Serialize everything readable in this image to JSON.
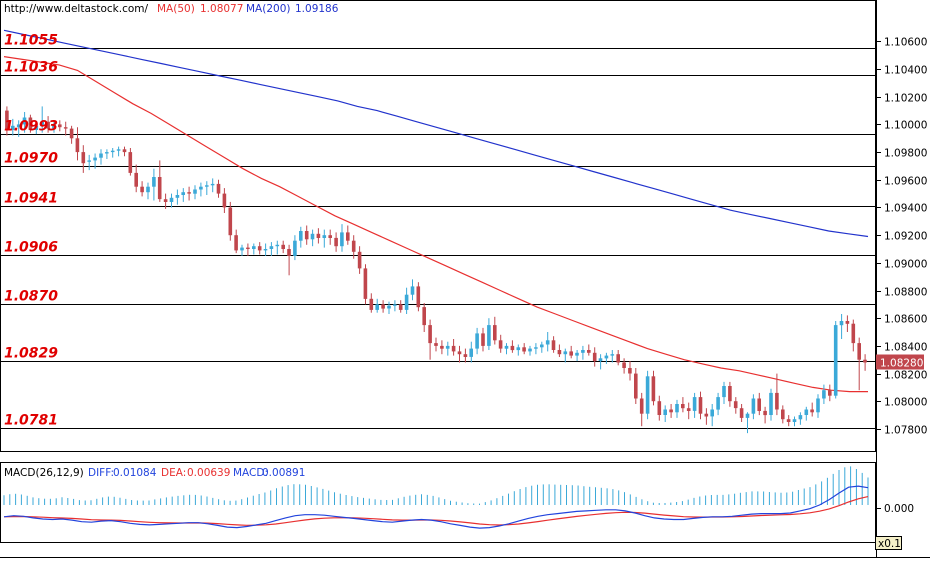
{
  "chart_data": [
    {
      "type": "candlestick",
      "header": {
        "url": "http://www.deltastock.com/",
        "ma50_label": "MA(50)",
        "ma50_value": "1.08077",
        "ma200_label": "MA(200)",
        "ma200_value": "1.09186"
      },
      "ylim": [
        1.0772,
        1.1074
      ],
      "y_ticks": [
        "1.10600",
        "1.10400",
        "1.10200",
        "1.10000",
        "1.09800",
        "1.09600",
        "1.09400",
        "1.09200",
        "1.09000",
        "1.08800",
        "1.08600",
        "1.08400",
        "1.08200",
        "1.08000",
        "1.07800"
      ],
      "last_price": "1.08280",
      "level_lines": [
        "1.1055",
        "1.1036",
        "1.0993",
        "1.0970",
        "1.0941",
        "1.0906",
        "1.0870",
        "1.0829",
        "1.0781"
      ],
      "colors": {
        "up": "#3ba9d8",
        "down": "#c0464c",
        "ma50": "#e83030",
        "ma200": "#2233cc",
        "level_text": "#e00000"
      },
      "ma50": [
        1.1049,
        1.1047,
        1.1045,
        1.1043,
        1.1039,
        1.1031,
        1.1023,
        1.1015,
        1.1008,
        1.1,
        1.0992,
        1.0984,
        1.0976,
        1.0968,
        1.0961,
        1.0955,
        1.0948,
        1.0941,
        1.0934,
        1.0928,
        1.0922,
        1.0916,
        1.091,
        1.0904,
        1.0898,
        1.0892,
        1.0886,
        1.088,
        1.0874,
        1.0868,
        1.0863,
        1.0858,
        1.0853,
        1.0848,
        1.0843,
        1.0838,
        1.0834,
        1.083,
        1.0827,
        1.0824,
        1.0822,
        1.0819,
        1.0816,
        1.0813,
        1.081,
        1.0808,
        1.0807,
        1.0807
      ],
      "ma200": [
        1.1068,
        1.1065,
        1.1062,
        1.1059,
        1.1056,
        1.1053,
        1.105,
        1.1047,
        1.1044,
        1.1041,
        1.1038,
        1.1035,
        1.1032,
        1.1029,
        1.1026,
        1.1023,
        1.102,
        1.1017,
        1.1013,
        1.101,
        1.1006,
        1.1002,
        1.0998,
        1.0994,
        1.099,
        1.0986,
        1.0982,
        1.0978,
        1.0974,
        1.097,
        1.0966,
        1.0962,
        1.0958,
        1.0954,
        1.095,
        1.0946,
        1.0942,
        1.0938,
        1.0935,
        1.0932,
        1.0929,
        1.0926,
        1.0923,
        1.0921,
        1.0919
      ],
      "candles": [
        [
          1.101,
          1.1013,
          1.0992,
          1.0996
        ],
        [
          1.0996,
          1.1004,
          1.0992,
          1.0999
        ],
        [
          1.0998,
          1.1003,
          1.0991,
          1.1
        ],
        [
          1.1,
          1.1009,
          1.0994,
          1.1005
        ],
        [
          1.1005,
          1.1007,
          1.0994,
          1.0996
        ],
        [
          1.0996,
          1.1002,
          1.0993,
          1.0999
        ],
        [
          1.0999,
          1.1013,
          1.0994,
          1.1002
        ],
        [
          1.1002,
          1.1006,
          1.0994,
          1.0997
        ],
        [
          1.0997,
          1.1002,
          1.0994,
          1.1
        ],
        [
          1.1,
          1.1003,
          1.0995,
          1.0998
        ],
        [
          1.0998,
          1.1002,
          1.0992,
          1.0997
        ],
        [
          1.0997,
          1.0999,
          1.0986,
          1.099
        ],
        [
          1.099,
          1.0998,
          1.0974,
          1.098
        ],
        [
          1.098,
          1.0985,
          1.0965,
          1.0972
        ],
        [
          1.0973,
          1.0978,
          1.0967,
          1.0974
        ],
        [
          1.0974,
          1.0979,
          1.0968,
          1.0976
        ],
        [
          1.0976,
          1.0982,
          1.0971,
          1.0979
        ],
        [
          1.0979,
          1.0982,
          1.0975,
          1.098
        ],
        [
          1.098,
          1.0983,
          1.0976,
          1.0981
        ],
        [
          1.0981,
          1.0984,
          1.0977,
          1.0982
        ],
        [
          1.0982,
          1.0984,
          1.0977,
          1.098
        ],
        [
          1.098,
          1.0983,
          1.0963,
          1.0965
        ],
        [
          1.0965,
          1.0971,
          1.0951,
          1.0955
        ],
        [
          1.0955,
          1.0959,
          1.0948,
          1.0951
        ],
        [
          1.0951,
          1.0958,
          1.0946,
          1.0955
        ],
        [
          1.0955,
          1.0968,
          1.0945,
          1.0962
        ],
        [
          1.0962,
          1.0974,
          1.0944,
          1.0946
        ],
        [
          1.0946,
          1.095,
          1.0939,
          1.0944
        ],
        [
          1.0944,
          1.095,
          1.094,
          1.0947
        ],
        [
          1.0947,
          1.0953,
          1.0942,
          1.0949
        ],
        [
          1.0949,
          1.0954,
          1.0944,
          1.0951
        ],
        [
          1.0951,
          1.0955,
          1.0945,
          1.095
        ],
        [
          1.095,
          1.0956,
          1.0946,
          1.0953
        ],
        [
          1.0953,
          1.0958,
          1.0948,
          1.0955
        ],
        [
          1.0955,
          1.0959,
          1.0949,
          1.0956
        ],
        [
          1.0956,
          1.0961,
          1.0951,
          1.0957
        ],
        [
          1.0957,
          1.096,
          1.0947,
          1.095
        ],
        [
          1.095,
          1.0954,
          1.0936,
          1.094
        ],
        [
          1.094,
          1.0944,
          1.0916,
          1.092
        ],
        [
          1.092,
          1.0924,
          1.0907,
          1.0909
        ],
        [
          1.0909,
          1.0913,
          1.0905,
          1.0911
        ],
        [
          1.0911,
          1.0914,
          1.0905,
          1.091
        ],
        [
          1.091,
          1.0914,
          1.0906,
          1.0912
        ],
        [
          1.0912,
          1.0915,
          1.0906,
          1.0909
        ],
        [
          1.0909,
          1.0914,
          1.0905,
          1.091
        ],
        [
          1.091,
          1.0915,
          1.0905,
          1.0912
        ],
        [
          1.0912,
          1.0916,
          1.0906,
          1.0913
        ],
        [
          1.0913,
          1.0916,
          1.0907,
          1.091
        ],
        [
          1.091,
          1.0913,
          1.0891,
          1.0905
        ],
        [
          1.0905,
          1.092,
          1.0902,
          1.0916
        ],
        [
          1.0916,
          1.0926,
          1.0911,
          1.0923
        ],
        [
          1.0923,
          1.0927,
          1.0913,
          1.0917
        ],
        [
          1.0917,
          1.0924,
          1.0912,
          1.0921
        ],
        [
          1.0921,
          1.0925,
          1.0914,
          1.0918
        ],
        [
          1.0918,
          1.0924,
          1.0911,
          1.092
        ],
        [
          1.092,
          1.0924,
          1.0913,
          1.0918
        ],
        [
          1.0918,
          1.0922,
          1.0908,
          1.0912
        ],
        [
          1.0912,
          1.0928,
          1.0908,
          1.0922
        ],
        [
          1.0922,
          1.0927,
          1.0913,
          1.0916
        ],
        [
          1.0916,
          1.092,
          1.0903,
          1.0908
        ],
        [
          1.0908,
          1.0912,
          1.0892,
          1.0896
        ],
        [
          1.0896,
          1.0899,
          1.087,
          1.0874
        ],
        [
          1.0874,
          1.0878,
          1.0864,
          1.0866
        ],
        [
          1.0866,
          1.0874,
          1.0864,
          1.087
        ],
        [
          1.087,
          1.0873,
          1.0864,
          1.0867
        ],
        [
          1.0867,
          1.0872,
          1.0863,
          1.0869
        ],
        [
          1.0869,
          1.0873,
          1.0865,
          1.087
        ],
        [
          1.087,
          1.0873,
          1.0864,
          1.0866
        ],
        [
          1.0866,
          1.0882,
          1.0863,
          1.0877
        ],
        [
          1.0877,
          1.0888,
          1.0873,
          1.0883
        ],
        [
          1.0883,
          1.0886,
          1.0865,
          1.0868
        ],
        [
          1.0868,
          1.0871,
          1.085,
          1.0855
        ],
        [
          1.0855,
          1.0859,
          1.083,
          1.0842
        ],
        [
          1.0842,
          1.0846,
          1.0836,
          1.084
        ],
        [
          1.084,
          1.0844,
          1.0834,
          1.0838
        ],
        [
          1.0838,
          1.0843,
          1.0833,
          1.084
        ],
        [
          1.084,
          1.0845,
          1.0833,
          1.0836
        ],
        [
          1.0836,
          1.084,
          1.0828,
          1.0834
        ],
        [
          1.0834,
          1.0838,
          1.0828,
          1.0832
        ],
        [
          1.0832,
          1.0843,
          1.0828,
          1.0838
        ],
        [
          1.0838,
          1.0853,
          1.0834,
          1.0849
        ],
        [
          1.0849,
          1.0853,
          1.0836,
          1.084
        ],
        [
          1.084,
          1.086,
          1.0837,
          1.0855
        ],
        [
          1.0855,
          1.0861,
          1.0841,
          1.0844
        ],
        [
          1.0844,
          1.0848,
          1.0835,
          1.0838
        ],
        [
          1.0838,
          1.0842,
          1.0834,
          1.084
        ],
        [
          1.084,
          1.0844,
          1.0835,
          1.0837
        ],
        [
          1.0837,
          1.0841,
          1.0833,
          1.0839
        ],
        [
          1.0839,
          1.0842,
          1.0834,
          1.0836
        ],
        [
          1.0836,
          1.084,
          1.0833,
          1.0838
        ],
        [
          1.0838,
          1.0842,
          1.0834,
          1.0839
        ],
        [
          1.0839,
          1.0843,
          1.0835,
          1.0841
        ],
        [
          1.0841,
          1.085,
          1.0836,
          1.0844
        ],
        [
          1.0844,
          1.0847,
          1.0835,
          1.0837
        ],
        [
          1.0837,
          1.0841,
          1.0832,
          1.0834
        ],
        [
          1.0834,
          1.0838,
          1.0828,
          1.0836
        ],
        [
          1.0836,
          1.084,
          1.0831,
          1.0833
        ],
        [
          1.0833,
          1.0837,
          1.0829,
          1.0835
        ],
        [
          1.0835,
          1.084,
          1.083,
          1.0837
        ],
        [
          1.0837,
          1.0841,
          1.0833,
          1.0835
        ],
        [
          1.0835,
          1.0839,
          1.0825,
          1.0829
        ],
        [
          1.0829,
          1.0834,
          1.0823,
          1.0831
        ],
        [
          1.0831,
          1.0835,
          1.0827,
          1.0833
        ],
        [
          1.0833,
          1.0837,
          1.0828,
          1.0834
        ],
        [
          1.0834,
          1.0837,
          1.0826,
          1.0828
        ],
        [
          1.0828,
          1.0831,
          1.082,
          1.0824
        ],
        [
          1.0824,
          1.0829,
          1.0815,
          1.082
        ],
        [
          1.082,
          1.0824,
          1.0798,
          1.0802
        ],
        [
          1.0802,
          1.0806,
          1.0782,
          1.0791
        ],
        [
          1.0791,
          1.0822,
          1.0787,
          1.0818
        ],
        [
          1.0818,
          1.0822,
          1.0797,
          1.08
        ],
        [
          1.08,
          1.0804,
          1.0786,
          1.079
        ],
        [
          1.079,
          1.0797,
          1.0785,
          1.0794
        ],
        [
          1.0794,
          1.0798,
          1.0788,
          1.0792
        ],
        [
          1.0792,
          1.0801,
          1.0788,
          1.0798
        ],
        [
          1.0798,
          1.0803,
          1.0792,
          1.0795
        ],
        [
          1.0795,
          1.0799,
          1.0787,
          1.0793
        ],
        [
          1.0793,
          1.0806,
          1.0788,
          1.0803
        ],
        [
          1.0803,
          1.0807,
          1.0787,
          1.0791
        ],
        [
          1.0791,
          1.0795,
          1.0783,
          1.0789
        ],
        [
          1.0789,
          1.0798,
          1.0782,
          1.0794
        ],
        [
          1.0794,
          1.0806,
          1.079,
          1.0803
        ],
        [
          1.0803,
          1.0814,
          1.0798,
          1.0811
        ],
        [
          1.0811,
          1.0814,
          1.0796,
          1.08
        ],
        [
          1.08,
          1.0803,
          1.0791,
          1.0795
        ],
        [
          1.0795,
          1.0798,
          1.0785,
          1.0788
        ],
        [
          1.0788,
          1.0792,
          1.0777,
          1.0791
        ],
        [
          1.0791,
          1.0805,
          1.0787,
          1.0802
        ],
        [
          1.0802,
          1.0806,
          1.079,
          1.0793
        ],
        [
          1.0793,
          1.0796,
          1.0784,
          1.079
        ],
        [
          1.079,
          1.0809,
          1.0786,
          1.0806
        ],
        [
          1.0806,
          1.082,
          1.079,
          1.0794
        ],
        [
          1.0794,
          1.0797,
          1.0784,
          1.0787
        ],
        [
          1.0787,
          1.079,
          1.0782,
          1.0785
        ],
        [
          1.0785,
          1.0789,
          1.0782,
          1.0787
        ],
        [
          1.0787,
          1.0792,
          1.0783,
          1.079
        ],
        [
          1.079,
          1.0796,
          1.0786,
          1.0794
        ],
        [
          1.0794,
          1.0799,
          1.0789,
          1.0792
        ],
        [
          1.0792,
          1.0805,
          1.0788,
          1.0802
        ],
        [
          1.0802,
          1.0812,
          1.0798,
          1.0808
        ],
        [
          1.0808,
          1.0812,
          1.08,
          1.0804
        ],
        [
          1.0804,
          1.0858,
          1.0802,
          1.0855
        ],
        [
          1.0855,
          1.0863,
          1.0845,
          1.0858
        ],
        [
          1.0858,
          1.0862,
          1.085,
          1.0856
        ],
        [
          1.0856,
          1.0859,
          1.0836,
          1.0842
        ],
        [
          1.0842,
          1.0846,
          1.0808,
          1.083
        ],
        [
          1.083,
          1.0834,
          1.0822,
          1.0828
        ]
      ]
    },
    {
      "type": "macd",
      "label": "MACD(26,12,9)",
      "diff_label": "DIFF:",
      "diff_value": "0.01084",
      "dea_label": "DEA:",
      "dea_value": "0.00639",
      "macd_label": "MACD:",
      "macd_value": "0.00891",
      "zero_tick": "0.000",
      "scale_badge": "x0.1",
      "ylim": [
        -0.0065,
        0.005
      ],
      "colors": {
        "diff": "#2244dd",
        "dea": "#e83030",
        "hist_up": "#3ba9d8",
        "hist_down": "#c0464c"
      },
      "diff": [
        -0.0022,
        -0.002,
        -0.0021,
        -0.0024,
        -0.0026,
        -0.0027,
        -0.0026,
        -0.0028,
        -0.0031,
        -0.0032,
        -0.003,
        -0.0029,
        -0.0031,
        -0.0034,
        -0.0036,
        -0.0037,
        -0.0036,
        -0.0035,
        -0.0034,
        -0.0033,
        -0.0033,
        -0.0035,
        -0.0038,
        -0.0041,
        -0.0042,
        -0.004,
        -0.0037,
        -0.0034,
        -0.0029,
        -0.0024,
        -0.002,
        -0.0018,
        -0.0018,
        -0.0019,
        -0.0021,
        -0.0023,
        -0.0025,
        -0.0027,
        -0.0029,
        -0.0031,
        -0.0032,
        -0.003,
        -0.0028,
        -0.0027,
        -0.0028,
        -0.0031,
        -0.0035,
        -0.0038,
        -0.0041,
        -0.0043,
        -0.0042,
        -0.0039,
        -0.0035,
        -0.003,
        -0.0025,
        -0.0021,
        -0.0018,
        -0.0016,
        -0.0014,
        -0.0012,
        -0.0011,
        -0.001,
        -0.0009,
        -0.0009,
        -0.0011,
        -0.0015,
        -0.002,
        -0.0024,
        -0.0026,
        -0.0027,
        -0.0027,
        -0.0025,
        -0.0023,
        -0.0022,
        -0.0022,
        -0.0021,
        -0.0019,
        -0.0017,
        -0.0016,
        -0.0016,
        -0.0016,
        -0.0015,
        -0.0011,
        -0.0007,
        0.0,
        0.001,
        0.0022,
        0.0033,
        0.0035,
        0.0032
      ]
    }
  ]
}
